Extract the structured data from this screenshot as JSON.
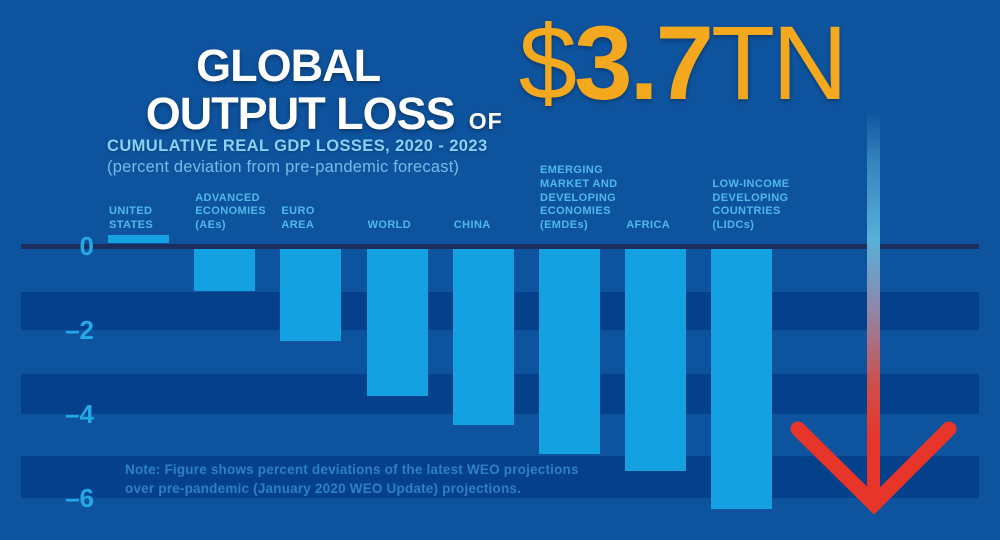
{
  "header": {
    "title_line1": "GLOBAL",
    "title_line2": "OUTPUT LOSS",
    "connector": "OF",
    "amount_sign": "$",
    "amount_number": "3.7",
    "amount_unit": "TN",
    "subtitle": "CUMULATIVE REAL GDP LOSSES, 2020 - 2023",
    "subtitle_detail": "(percent deviation from pre-pandemic forecast)"
  },
  "note": {
    "line1": "Note: Figure shows percent deviations of the latest WEO projections",
    "line2": "over pre-pandemic (January 2020 WEO Update) projections."
  },
  "icons": {
    "down_arrow": "large red down-arrow with shaft fading from light blue to red"
  },
  "chart_data": {
    "type": "bar",
    "title": "Global output loss of $3.7TN",
    "subtitle": "Cumulative real GDP losses, 2020 - 2023",
    "ylabel": "percent deviation from pre-pandemic forecast",
    "categories": [
      "United States",
      "Advanced Economies (AEs)",
      "Euro Area",
      "World",
      "China",
      "Emerging Market and Developing Economies (EMDEs)",
      "Africa",
      "Low-Income Developing Countries (LIDCs)"
    ],
    "category_label_lines": [
      [
        "UNITED",
        "STATES"
      ],
      [
        "ADVANCED",
        "ECONOMIES",
        "(AEs)"
      ],
      [
        "EURO",
        "AREA"
      ],
      [
        "WORLD"
      ],
      [
        "CHINA"
      ],
      [
        "EMERGING",
        "MARKET AND",
        "DEVELOPING",
        "ECONOMIES",
        "(EMDEs)"
      ],
      [
        "AFRICA"
      ],
      [
        "LOW-INCOME",
        "DEVELOPING",
        "COUNTRIES",
        "(LIDCs)"
      ]
    ],
    "values": [
      0.2,
      -1.0,
      -2.2,
      -3.5,
      -4.2,
      -4.9,
      -5.3,
      -6.2
    ],
    "yticks": [
      0,
      -2,
      -4,
      -6
    ],
    "ytick_labels": [
      "0",
      "–2",
      "–4",
      "–6"
    ],
    "ylim": [
      0.5,
      -6.5
    ],
    "stripe_bands": [
      [
        -1.1,
        -2.0
      ],
      [
        -3.05,
        -4.0
      ],
      [
        -5.0,
        -6.0
      ]
    ],
    "legend_position": "none",
    "grid": "horizontal striped bands"
  },
  "colors": {
    "background": "#0e539e",
    "stripe_band": "#05418b",
    "zero_line": "#1d2d5e",
    "bar": "#14a1e1",
    "axis_tick": "#25a9e6",
    "category_label": "#4fb8ea",
    "subtitle": "#8ad2f4",
    "subtitle_detail": "#74bce6",
    "note_text": "#2e80c3",
    "title_text": "#ffffff",
    "amount_gold": "#f4a81d",
    "arrow_red": "#e8352a",
    "arrow_tail_blue": "#58b0d8"
  }
}
